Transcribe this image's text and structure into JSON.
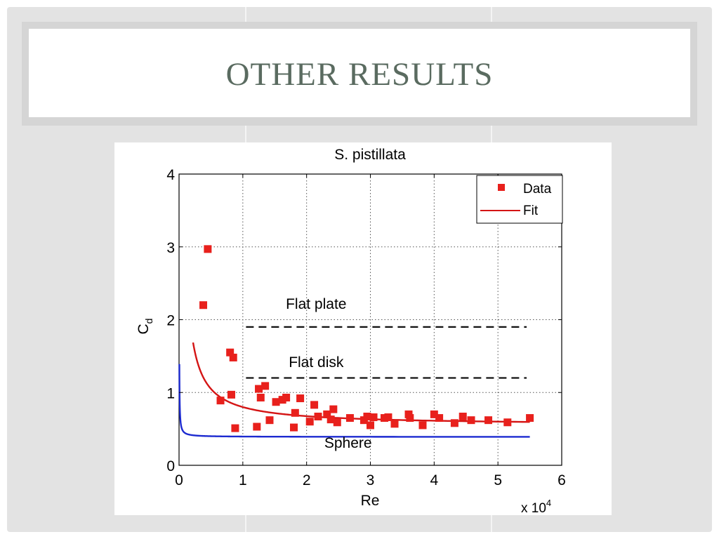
{
  "slide": {
    "title": "OTHER RESULTS"
  },
  "chart_data": {
    "type": "scatter",
    "title": "S. pistillata",
    "xlabel": "Re",
    "ylabel": "C",
    "ylabel_sub": "d",
    "x_multiplier_label": "x 10",
    "x_multiplier_exp": "4",
    "xlim": [
      0,
      6
    ],
    "ylim": [
      0,
      4
    ],
    "xticks": [
      "0",
      "1",
      "2",
      "3",
      "4",
      "5",
      "6"
    ],
    "yticks": [
      "0",
      "1",
      "2",
      "3",
      "4"
    ],
    "grid": true,
    "legend": {
      "position": "top-right",
      "entries": [
        "Data",
        "Fit"
      ]
    },
    "colors": {
      "data": "#e8201c",
      "fit": "#d41414",
      "sphere": "#1c2ad0",
      "reference": "#111111"
    },
    "series": [
      {
        "name": "Data",
        "kind": "markers",
        "points": [
          [
            0.38,
            2.2
          ],
          [
            0.45,
            2.97
          ],
          [
            0.65,
            0.89
          ],
          [
            0.8,
            1.55
          ],
          [
            0.85,
            1.48
          ],
          [
            0.82,
            0.97
          ],
          [
            0.88,
            0.51
          ],
          [
            1.22,
            0.53
          ],
          [
            1.25,
            1.05
          ],
          [
            1.28,
            0.93
          ],
          [
            1.35,
            1.09
          ],
          [
            1.42,
            0.62
          ],
          [
            1.52,
            0.87
          ],
          [
            1.62,
            0.9
          ],
          [
            1.68,
            0.93
          ],
          [
            1.8,
            0.52
          ],
          [
            1.82,
            0.72
          ],
          [
            1.9,
            0.92
          ],
          [
            2.05,
            0.6
          ],
          [
            2.12,
            0.83
          ],
          [
            2.18,
            0.67
          ],
          [
            2.32,
            0.7
          ],
          [
            2.38,
            0.63
          ],
          [
            2.42,
            0.77
          ],
          [
            2.48,
            0.59
          ],
          [
            2.68,
            0.65
          ],
          [
            2.9,
            0.62
          ],
          [
            2.95,
            0.67
          ],
          [
            3.0,
            0.55
          ],
          [
            3.05,
            0.66
          ],
          [
            3.22,
            0.65
          ],
          [
            3.28,
            0.66
          ],
          [
            3.38,
            0.57
          ],
          [
            3.6,
            0.7
          ],
          [
            3.62,
            0.65
          ],
          [
            3.82,
            0.55
          ],
          [
            4.0,
            0.7
          ],
          [
            4.08,
            0.65
          ],
          [
            4.32,
            0.58
          ],
          [
            4.45,
            0.67
          ],
          [
            4.58,
            0.62
          ],
          [
            4.85,
            0.62
          ],
          [
            5.15,
            0.59
          ],
          [
            5.5,
            0.65
          ]
        ]
      },
      {
        "name": "Fit",
        "kind": "curve",
        "model": "a/x + b",
        "a": 0.25,
        "b": 0.55,
        "x_range": [
          0.22,
          5.5
        ]
      },
      {
        "kind": "curve",
        "model": "a/x + b",
        "a": 0.005,
        "b": 0.39,
        "x_range": [
          0.005,
          5.5
        ]
      },
      {
        "kind": "hline",
        "y": 1.9,
        "x_range": [
          1.05,
          5.45
        ]
      },
      {
        "kind": "hline",
        "y": 1.2,
        "x_range": [
          1.05,
          5.45
        ]
      }
    ],
    "annotations": [
      {
        "text": "Flat plate",
        "x": 2.15,
        "y": 2.15
      },
      {
        "text": "Flat disk",
        "x": 2.15,
        "y": 1.35
      },
      {
        "text": "Sphere",
        "x": 2.65,
        "y": 0.24
      }
    ]
  }
}
